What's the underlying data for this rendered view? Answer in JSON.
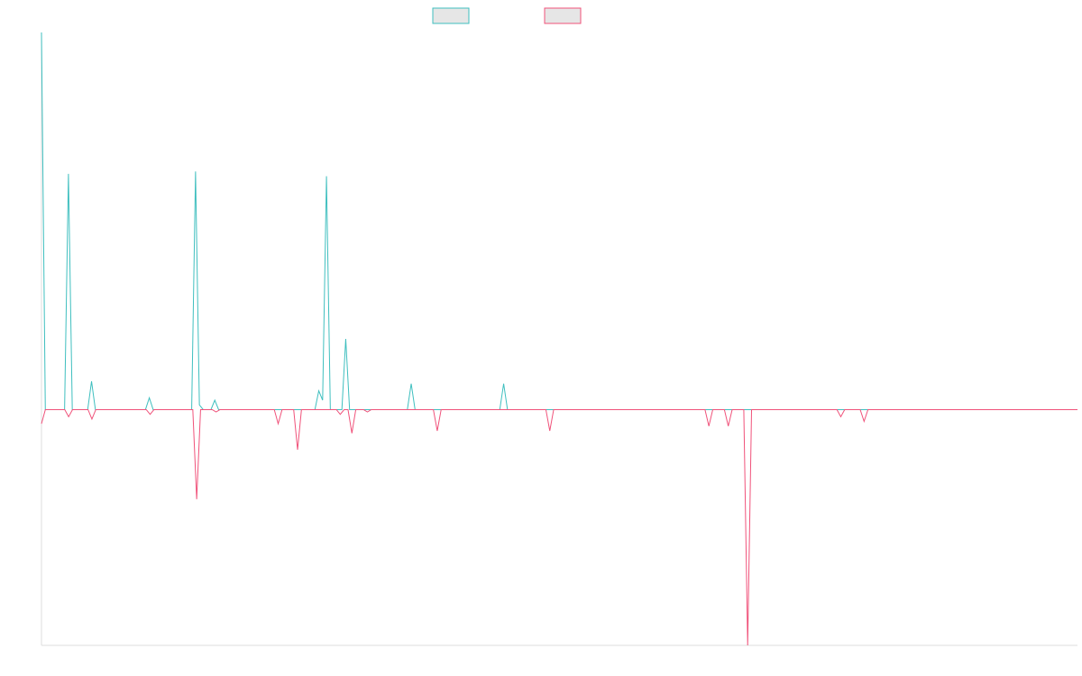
{
  "chart_data": {
    "type": "line",
    "title": "",
    "xlabel": "",
    "ylabel": "",
    "ylim": [
      -100,
      160
    ],
    "grid": false,
    "legend": {
      "placement": "top-center"
    },
    "series": [
      {
        "color": "#3fbfbf",
        "values": [
          160,
          0,
          0,
          0,
          0,
          0,
          0,
          100,
          0,
          0,
          0,
          0,
          0,
          12,
          0,
          0,
          0,
          0,
          0,
          0,
          0,
          0,
          0,
          0,
          0,
          0,
          0,
          0,
          5,
          0,
          0,
          0,
          0,
          0,
          0,
          0,
          0,
          0,
          0,
          0,
          101,
          2,
          0,
          0,
          0,
          4,
          0,
          0,
          0,
          0,
          0,
          0,
          0,
          0,
          0,
          0,
          0,
          0,
          0,
          0,
          0,
          0,
          0,
          0,
          0,
          0,
          0,
          0,
          0,
          0,
          0,
          0,
          8,
          4,
          99,
          0,
          0,
          0,
          0,
          30,
          0,
          0,
          0,
          0,
          0,
          0,
          0,
          0,
          0,
          0,
          0,
          0,
          0,
          0,
          0,
          0,
          11,
          0,
          0,
          0,
          0,
          0,
          0,
          0,
          0,
          0,
          0,
          0,
          0,
          0,
          0,
          0,
          0,
          0,
          0,
          0,
          0,
          0,
          0,
          0,
          11,
          0,
          0,
          0,
          0,
          0,
          0,
          0,
          0,
          0,
          0,
          0,
          0,
          0,
          0,
          0,
          0,
          0,
          0,
          0,
          0,
          0,
          0,
          0,
          0,
          0,
          0,
          0,
          0,
          0,
          0,
          0,
          0,
          0,
          0,
          0,
          0,
          0,
          0,
          0,
          0,
          0,
          0,
          0,
          0,
          0,
          0,
          0,
          0,
          0,
          0,
          0,
          0,
          0,
          0,
          0,
          0,
          0,
          0,
          0,
          0,
          0,
          0,
          0,
          0,
          0,
          0,
          0,
          0,
          0,
          0,
          0,
          0,
          0,
          0,
          0,
          0,
          0,
          0,
          0,
          0,
          0,
          0,
          0,
          0,
          0,
          0,
          0,
          0,
          0,
          0,
          0,
          0,
          0,
          0,
          0,
          0,
          0,
          0,
          0,
          0,
          0,
          0,
          0,
          0,
          0,
          0,
          0,
          0,
          0,
          0,
          0,
          0,
          0,
          0,
          0,
          0,
          0,
          0,
          0,
          0,
          0,
          0,
          0,
          0,
          0,
          0,
          0,
          0,
          0,
          0,
          0,
          0,
          0,
          0,
          0,
          0,
          0,
          0,
          0,
          0,
          0,
          0,
          0,
          0,
          0,
          0,
          0,
          0,
          0
        ]
      },
      {
        "color": "#f0527a",
        "values": [
          -6,
          0,
          0,
          0,
          0,
          0,
          0,
          -3,
          0,
          0,
          0,
          0,
          0,
          -4,
          0,
          0,
          0,
          0,
          0,
          0,
          0,
          0,
          0,
          0,
          0,
          0,
          0,
          0,
          -2,
          0,
          0,
          0,
          0,
          0,
          0,
          0,
          0,
          0,
          0,
          0,
          -38,
          0,
          0,
          0,
          0,
          -1,
          0,
          0,
          0,
          0,
          0,
          0,
          0,
          0,
          0,
          0,
          0,
          0,
          0,
          0,
          0,
          -6,
          0,
          0,
          0,
          0,
          -17,
          0,
          0,
          0,
          0,
          0,
          0,
          0,
          0,
          0,
          0,
          -2,
          0,
          0,
          -10,
          0,
          0,
          0,
          -1,
          0,
          0,
          0,
          0,
          0,
          0,
          0,
          0,
          0,
          0,
          0,
          0,
          0,
          0,
          0,
          0,
          0,
          -9,
          0,
          0,
          0,
          0,
          0,
          0,
          0,
          0,
          0,
          0,
          0,
          0,
          0,
          0,
          0,
          0,
          0,
          0,
          0,
          0,
          0,
          0,
          0,
          0,
          0,
          0,
          0,
          0,
          -9,
          0,
          0,
          0,
          0,
          0,
          0,
          0,
          0,
          0,
          0,
          0,
          0,
          0,
          0,
          0,
          0,
          0,
          0,
          0,
          0,
          0,
          0,
          0,
          0,
          0,
          0,
          0,
          0,
          0,
          0,
          0,
          0,
          0,
          0,
          0,
          0,
          0,
          0,
          0,
          0,
          -7,
          0,
          0,
          0,
          0,
          -7,
          0,
          0,
          0,
          0,
          -100,
          0,
          0,
          0,
          0,
          0,
          0,
          0,
          0,
          0,
          0,
          0,
          0,
          0,
          0,
          0,
          0,
          0,
          0,
          0,
          0,
          0,
          0,
          0,
          -3,
          0,
          0,
          0,
          0,
          0,
          -5,
          0,
          0,
          0,
          0,
          0,
          0,
          0,
          0,
          0,
          0,
          0,
          0,
          0,
          0,
          0,
          0,
          0,
          0,
          0,
          0,
          0,
          0,
          0,
          0,
          0,
          0,
          0,
          0,
          0,
          0,
          0,
          0,
          0,
          0,
          0,
          0,
          0,
          0,
          0,
          0,
          0,
          0,
          0,
          0,
          0,
          0,
          0,
          0,
          0,
          0,
          0,
          0,
          0,
          0,
          0
        ]
      }
    ]
  }
}
